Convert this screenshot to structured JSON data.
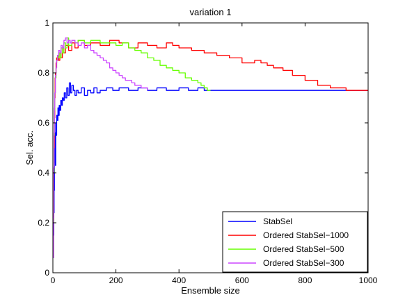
{
  "chart_data": {
    "type": "line",
    "title": "variation 1",
    "xlabel": "Ensemble size",
    "ylabel": "Sel. acc.",
    "xlim": [
      0,
      1000
    ],
    "ylim": [
      0,
      1
    ],
    "xticks": [
      0,
      200,
      400,
      600,
      800,
      1000
    ],
    "yticks": [
      0,
      0.2,
      0.4,
      0.6,
      0.8,
      1
    ],
    "xtick_labels": [
      "0",
      "200",
      "400",
      "600",
      "800",
      "1000"
    ],
    "ytick_labels": [
      "0",
      "0.2",
      "0.4",
      "0.6",
      "0.8",
      "1"
    ],
    "grid": false,
    "legend_position": "bottom-right",
    "series": [
      {
        "name": "StabSel",
        "color": "#0000ff",
        "x": [
          1,
          2,
          3,
          4,
          5,
          6,
          7,
          8,
          9,
          10,
          12,
          14,
          16,
          18,
          20,
          22,
          25,
          28,
          30,
          33,
          36,
          40,
          44,
          48,
          52,
          56,
          60,
          65,
          70,
          75,
          80,
          90,
          100,
          110,
          120,
          130,
          140,
          150,
          170,
          190,
          210,
          240,
          270,
          300,
          330,
          360,
          400,
          430,
          460,
          480,
          500,
          600,
          700,
          800,
          900,
          1000
        ],
        "y": [
          0.06,
          0.15,
          0.24,
          0.33,
          0.44,
          0.5,
          0.56,
          0.43,
          0.6,
          0.55,
          0.63,
          0.61,
          0.66,
          0.63,
          0.67,
          0.65,
          0.69,
          0.67,
          0.7,
          0.69,
          0.72,
          0.7,
          0.74,
          0.71,
          0.76,
          0.72,
          0.75,
          0.73,
          0.71,
          0.73,
          0.72,
          0.74,
          0.71,
          0.73,
          0.72,
          0.74,
          0.72,
          0.73,
          0.74,
          0.73,
          0.74,
          0.73,
          0.74,
          0.73,
          0.74,
          0.73,
          0.74,
          0.73,
          0.74,
          0.73,
          0.73,
          0.73,
          0.73,
          0.73,
          0.73,
          0.73
        ]
      },
      {
        "name": "Ordered StabSel−1000",
        "color": "#ff0000",
        "x": [
          1,
          2,
          3,
          4,
          5,
          6,
          7,
          8,
          10,
          12,
          15,
          18,
          22,
          26,
          30,
          35,
          40,
          50,
          60,
          70,
          80,
          100,
          120,
          150,
          180,
          210,
          240,
          270,
          300,
          330,
          360,
          380,
          400,
          440,
          480,
          520,
          560,
          600,
          640,
          660,
          680,
          700,
          730,
          760,
          800,
          840,
          880,
          900,
          930,
          960,
          1000
        ],
        "y": [
          0.06,
          0.2,
          0.4,
          0.5,
          0.62,
          0.7,
          0.78,
          0.8,
          0.84,
          0.86,
          0.87,
          0.85,
          0.88,
          0.86,
          0.9,
          0.88,
          0.91,
          0.89,
          0.92,
          0.9,
          0.93,
          0.91,
          0.92,
          0.91,
          0.93,
          0.92,
          0.9,
          0.92,
          0.91,
          0.9,
          0.92,
          0.91,
          0.9,
          0.89,
          0.88,
          0.87,
          0.86,
          0.84,
          0.85,
          0.84,
          0.83,
          0.82,
          0.81,
          0.79,
          0.77,
          0.75,
          0.74,
          0.74,
          0.73,
          0.73,
          0.73
        ]
      },
      {
        "name": "Ordered StabSel−500",
        "color": "#66ff00",
        "x": [
          1,
          2,
          3,
          4,
          5,
          6,
          8,
          10,
          12,
          15,
          18,
          22,
          26,
          30,
          35,
          40,
          45,
          50,
          60,
          70,
          80,
          100,
          120,
          150,
          180,
          200,
          220,
          240,
          260,
          280,
          300,
          320,
          340,
          360,
          380,
          400,
          420,
          440,
          460,
          470,
          480,
          490,
          500
        ],
        "y": [
          0.06,
          0.2,
          0.4,
          0.55,
          0.65,
          0.72,
          0.78,
          0.82,
          0.85,
          0.86,
          0.88,
          0.86,
          0.9,
          0.88,
          0.92,
          0.9,
          0.94,
          0.91,
          0.93,
          0.92,
          0.93,
          0.92,
          0.93,
          0.92,
          0.92,
          0.91,
          0.92,
          0.9,
          0.89,
          0.88,
          0.86,
          0.85,
          0.83,
          0.82,
          0.81,
          0.8,
          0.78,
          0.77,
          0.76,
          0.75,
          0.74,
          0.73,
          0.73
        ]
      },
      {
        "name": "Ordered StabSel−300",
        "color": "#cc44ff",
        "x": [
          1,
          2,
          3,
          4,
          5,
          6,
          8,
          10,
          12,
          15,
          18,
          22,
          26,
          30,
          35,
          40,
          45,
          50,
          55,
          60,
          70,
          80,
          90,
          100,
          110,
          120,
          130,
          140,
          150,
          160,
          170,
          180,
          190,
          200,
          210,
          220,
          230,
          240,
          250,
          260,
          270,
          280,
          290,
          300
        ],
        "y": [
          0.06,
          0.22,
          0.42,
          0.56,
          0.66,
          0.72,
          0.79,
          0.82,
          0.85,
          0.87,
          0.89,
          0.88,
          0.91,
          0.9,
          0.93,
          0.94,
          0.92,
          0.93,
          0.92,
          0.93,
          0.92,
          0.91,
          0.92,
          0.9,
          0.91,
          0.89,
          0.88,
          0.87,
          0.86,
          0.85,
          0.84,
          0.82,
          0.81,
          0.8,
          0.79,
          0.78,
          0.77,
          0.77,
          0.76,
          0.75,
          0.75,
          0.74,
          0.74,
          0.73
        ]
      }
    ]
  }
}
